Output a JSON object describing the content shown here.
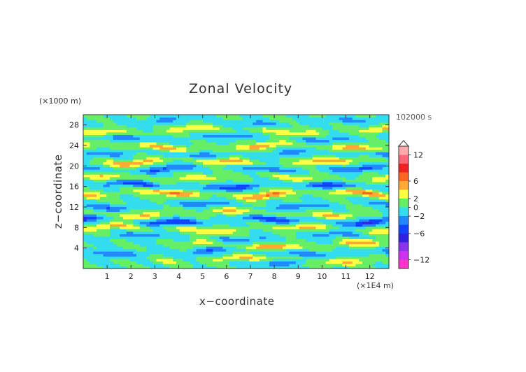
{
  "chart_data": {
    "type": "heatmap",
    "title": "Zonal Velocity",
    "time_label": "102000 s",
    "xlabel": "x−coordinate",
    "ylabel": "z−coordinate",
    "x_unit": "(×1E4 m)",
    "y_unit": "(×1000 m)",
    "xlim": [
      0,
      12.8
    ],
    "ylim": [
      0,
      30
    ],
    "x_ticks": [
      1,
      2,
      3,
      4,
      5,
      6,
      7,
      8,
      9,
      10,
      11,
      12
    ],
    "y_ticks": [
      4,
      8,
      12,
      16,
      20,
      24,
      28
    ],
    "colorbar": {
      "labels": [
        {
          "value": 12,
          "text": "12"
        },
        {
          "value": 6,
          "text": "6"
        },
        {
          "value": 2,
          "text": "2"
        },
        {
          "value": 0,
          "text": "0"
        },
        {
          "value": -2,
          "text": "−2"
        },
        {
          "value": -6,
          "text": "−6"
        },
        {
          "value": -12,
          "text": "−12"
        }
      ],
      "levels": [
        -14,
        -12,
        -10,
        -8,
        -6,
        -4,
        -2,
        0,
        2,
        4,
        6,
        8,
        10,
        12,
        14
      ],
      "colors": [
        "#ff33cc",
        "#cc33ee",
        "#8833ee",
        "#3322dd",
        "#1144ff",
        "#2288ff",
        "#33ddee",
        "#66ee66",
        "#ffff44",
        "#ffaa33",
        "#ff6622",
        "#ee2222",
        "#ff6677",
        "#ffaaaa"
      ],
      "overflow_color": "#ffffff"
    },
    "bands": [
      {
        "z": 1.0,
        "amp": -3.2,
        "x0": 6.4,
        "x1": 9.0
      },
      {
        "z": 1.8,
        "amp": 4.0,
        "x0": 3.5,
        "x1": 12.8
      },
      {
        "z": 3.2,
        "amp": -3.5,
        "x0": 0.0,
        "x1": 12.8
      },
      {
        "z": 4.6,
        "amp": 6.0,
        "x0": 5.0,
        "x1": 12.0
      },
      {
        "z": 6.2,
        "amp": -3.0,
        "x0": 0.0,
        "x1": 12.8
      },
      {
        "z": 7.8,
        "amp": 4.5,
        "x0": 0.0,
        "x1": 12.8
      },
      {
        "z": 9.4,
        "amp": -6.0,
        "x0": 0.0,
        "x1": 12.8
      },
      {
        "z": 10.8,
        "amp": 4.0,
        "x0": 0.0,
        "x1": 12.8
      },
      {
        "z": 12.4,
        "amp": -3.5,
        "x0": 0.0,
        "x1": 12.8
      },
      {
        "z": 14.6,
        "amp": 6.5,
        "x0": 0.0,
        "x1": 12.8
      },
      {
        "z": 16.2,
        "amp": -5.5,
        "x0": 0.0,
        "x1": 12.8
      },
      {
        "z": 17.8,
        "amp": 3.5,
        "x0": 0.0,
        "x1": 12.8
      },
      {
        "z": 19.6,
        "amp": -4.5,
        "x0": 0.0,
        "x1": 12.8
      },
      {
        "z": 20.8,
        "amp": 5.5,
        "x0": 0.0,
        "x1": 12.8
      },
      {
        "z": 22.4,
        "amp": -3.0,
        "x0": 0.0,
        "x1": 12.8
      },
      {
        "z": 23.8,
        "amp": 5.0,
        "x0": 0.0,
        "x1": 12.8
      },
      {
        "z": 25.6,
        "amp": -3.0,
        "x0": 0.0,
        "x1": 12.8
      },
      {
        "z": 27.0,
        "amp": 4.0,
        "x0": 0.0,
        "x1": 12.8
      },
      {
        "z": 28.6,
        "amp": -2.5,
        "x0": 0.0,
        "x1": 12.8
      }
    ]
  }
}
